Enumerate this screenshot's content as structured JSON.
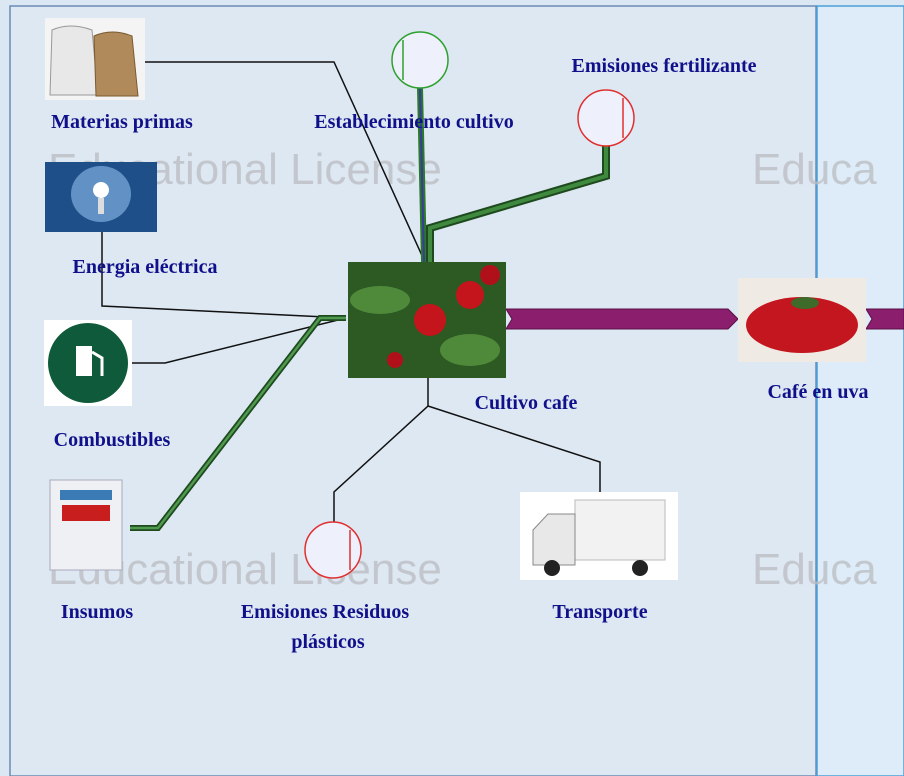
{
  "nodes": [
    {
      "label": "Materias primas"
    },
    {
      "label": "Establecimiento cultivo"
    },
    {
      "label": "Emisiones fertilizante"
    },
    {
      "label": "Energia eléctrica"
    },
    {
      "label": "Combustibles"
    },
    {
      "label": "Insumos"
    },
    {
      "label": "Emisiones Residuos",
      "label2": "plásticos"
    },
    {
      "label": "Transporte"
    },
    {
      "label": "Cultivo cafe"
    },
    {
      "label": "Café en uva"
    }
  ],
  "watermarks": [
    "Educational License",
    "Educa",
    "Educational License",
    "Educa"
  ]
}
